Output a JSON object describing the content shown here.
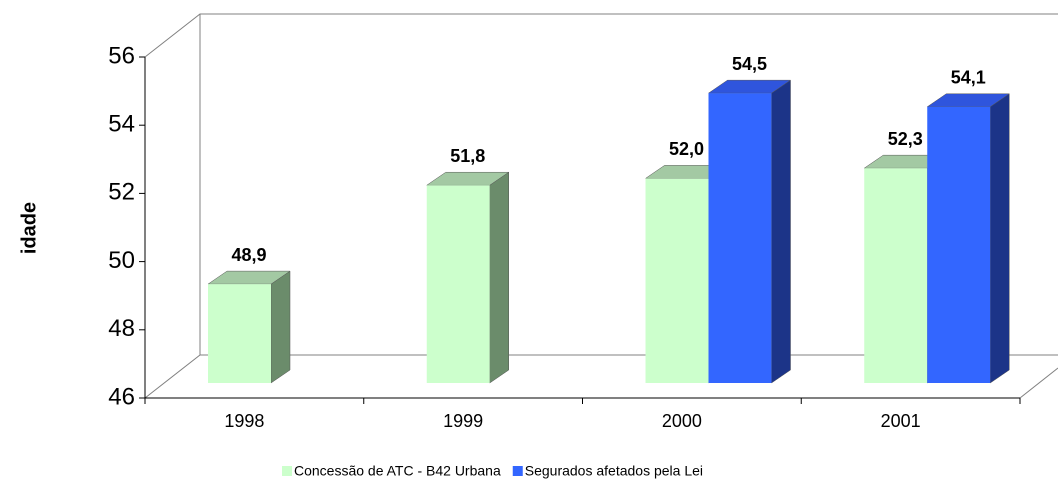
{
  "chart_data": {
    "type": "bar3d",
    "y_label": "idade",
    "categories": [
      "1998",
      "1999",
      "2000",
      "2001"
    ],
    "series": [
      {
        "name": "Concessão de ATC - B42 Urbana",
        "color": "#ccffcc",
        "values": [
          48.9,
          51.8,
          52.0,
          52.3
        ],
        "value_labels": [
          "48,9",
          "51,8",
          "52,0",
          "52,3"
        ]
      },
      {
        "name": "Segurados afetados pela Lei",
        "color": "#3366ff",
        "values": [
          null,
          null,
          54.5,
          54.1
        ],
        "value_labels": [
          null,
          null,
          "54,5",
          "54,1"
        ]
      }
    ],
    "ylim": [
      46,
      56
    ],
    "yticks": [
      46,
      48,
      50,
      52,
      54,
      56
    ],
    "grid": false,
    "legend": "bottom"
  }
}
